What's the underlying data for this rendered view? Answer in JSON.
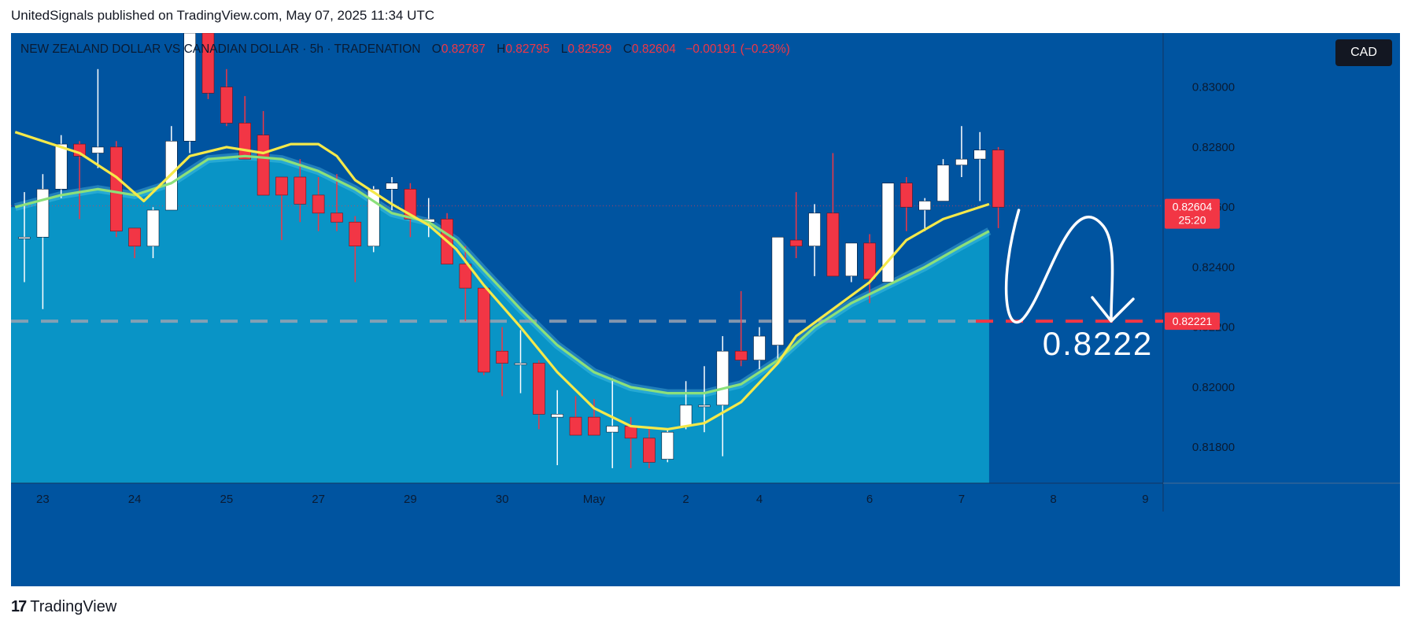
{
  "header": {
    "text": "UnitedSignals published on TradingView.com, May 07, 2025 11:34 UTC"
  },
  "info": {
    "symbol": "NEW ZEALAND DOLLAR VS CANADIAN DOLLAR · 5h · TRADENATION",
    "o_label": "O",
    "o_value": "0.82787",
    "h_label": "H",
    "h_value": "0.82795",
    "l_label": "L",
    "l_value": "0.82529",
    "c_label": "C",
    "c_value": "0.82604",
    "change": "−0.00191 (−0.23%)"
  },
  "currency": "CAD",
  "footer": {
    "brand": "TradingView",
    "logo_text": "17"
  },
  "colors": {
    "background": "#0054a0",
    "up": "#ffffff",
    "down": "#f23645",
    "ma_fast": "#f5e94a",
    "ma_slow": "#8ce07a",
    "area": "#0aa0cc",
    "target_line": "#f23645"
  },
  "chart_data": {
    "type": "candlestick",
    "ylim": [
      0.8168,
      0.8318
    ],
    "y_ticks": [
      0.83,
      0.828,
      0.826,
      0.824,
      0.822,
      0.82,
      0.818
    ],
    "y_tick_labels": [
      "0.83000",
      "0.82800",
      "0.82600",
      "0.82400",
      "0.82200",
      "0.82000",
      "0.81800"
    ],
    "x_tick_labels": [
      {
        "label": "23",
        "i": 1
      },
      {
        "label": "24",
        "i": 6
      },
      {
        "label": "25",
        "i": 11
      },
      {
        "label": "27",
        "i": 16
      },
      {
        "label": "29",
        "i": 21
      },
      {
        "label": "30",
        "i": 26
      },
      {
        "label": "May",
        "i": 31
      },
      {
        "label": "2",
        "i": 36
      },
      {
        "label": "4",
        "i": 40
      },
      {
        "label": "6",
        "i": 46
      },
      {
        "label": "7",
        "i": 51
      },
      {
        "label": "8",
        "i": 56
      },
      {
        "label": "9",
        "i": 61
      }
    ],
    "candles": [
      {
        "o": 0.825,
        "h": 0.8265,
        "l": 0.8235,
        "c": 0.825
      },
      {
        "o": 0.825,
        "h": 0.8271,
        "l": 0.8226,
        "c": 0.8266
      },
      {
        "o": 0.8266,
        "h": 0.8284,
        "l": 0.8263,
        "c": 0.8281
      },
      {
        "o": 0.8281,
        "h": 0.8282,
        "l": 0.8256,
        "c": 0.8277
      },
      {
        "o": 0.8278,
        "h": 0.8306,
        "l": 0.8273,
        "c": 0.828
      },
      {
        "o": 0.828,
        "h": 0.8282,
        "l": 0.825,
        "c": 0.8252
      },
      {
        "o": 0.8253,
        "h": 0.8253,
        "l": 0.8243,
        "c": 0.8247
      },
      {
        "o": 0.8247,
        "h": 0.826,
        "l": 0.8243,
        "c": 0.8259
      },
      {
        "o": 0.8259,
        "h": 0.8287,
        "l": 0.8259,
        "c": 0.8282
      },
      {
        "o": 0.8282,
        "h": 0.8318,
        "l": 0.8278,
        "c": 0.8318
      },
      {
        "o": 0.8318,
        "h": 0.8318,
        "l": 0.8296,
        "c": 0.8298
      },
      {
        "o": 0.83,
        "h": 0.8306,
        "l": 0.8287,
        "c": 0.8288
      },
      {
        "o": 0.8288,
        "h": 0.8297,
        "l": 0.8276,
        "c": 0.8276
      },
      {
        "o": 0.8284,
        "h": 0.8292,
        "l": 0.8264,
        "c": 0.8264
      },
      {
        "o": 0.827,
        "h": 0.827,
        "l": 0.8249,
        "c": 0.8264
      },
      {
        "o": 0.827,
        "h": 0.8276,
        "l": 0.8255,
        "c": 0.8261
      },
      {
        "o": 0.8264,
        "h": 0.827,
        "l": 0.8252,
        "c": 0.8258
      },
      {
        "o": 0.8258,
        "h": 0.8271,
        "l": 0.8252,
        "c": 0.8255
      },
      {
        "o": 0.8255,
        "h": 0.8257,
        "l": 0.8235,
        "c": 0.8247
      },
      {
        "o": 0.8247,
        "h": 0.8267,
        "l": 0.8245,
        "c": 0.8266
      },
      {
        "o": 0.8266,
        "h": 0.827,
        "l": 0.8259,
        "c": 0.8268
      },
      {
        "o": 0.8266,
        "h": 0.8268,
        "l": 0.825,
        "c": 0.8256
      },
      {
        "o": 0.8255,
        "h": 0.8263,
        "l": 0.825,
        "c": 0.8256
      },
      {
        "o": 0.8256,
        "h": 0.8258,
        "l": 0.8241,
        "c": 0.8241
      },
      {
        "o": 0.8241,
        "h": 0.8247,
        "l": 0.8222,
        "c": 0.8233
      },
      {
        "o": 0.8233,
        "h": 0.8233,
        "l": 0.8204,
        "c": 0.8205
      },
      {
        "o": 0.8212,
        "h": 0.822,
        "l": 0.8197,
        "c": 0.8208
      },
      {
        "o": 0.8208,
        "h": 0.8219,
        "l": 0.8198,
        "c": 0.8208
      },
      {
        "o": 0.8208,
        "h": 0.8209,
        "l": 0.8186,
        "c": 0.8191
      },
      {
        "o": 0.819,
        "h": 0.8199,
        "l": 0.8174,
        "c": 0.8191
      },
      {
        "o": 0.819,
        "h": 0.8197,
        "l": 0.8184,
        "c": 0.8184
      },
      {
        "o": 0.819,
        "h": 0.8196,
        "l": 0.8184,
        "c": 0.8184
      },
      {
        "o": 0.8185,
        "h": 0.8203,
        "l": 0.8173,
        "c": 0.8187
      },
      {
        "o": 0.8187,
        "h": 0.819,
        "l": 0.8173,
        "c": 0.8183
      },
      {
        "o": 0.8183,
        "h": 0.8187,
        "l": 0.8173,
        "c": 0.8175
      },
      {
        "o": 0.8176,
        "h": 0.8186,
        "l": 0.8175,
        "c": 0.8185
      },
      {
        "o": 0.8187,
        "h": 0.8202,
        "l": 0.8186,
        "c": 0.8194
      },
      {
        "o": 0.8194,
        "h": 0.8207,
        "l": 0.8185,
        "c": 0.8194
      },
      {
        "o": 0.8194,
        "h": 0.8217,
        "l": 0.8177,
        "c": 0.8212
      },
      {
        "o": 0.8212,
        "h": 0.8232,
        "l": 0.8207,
        "c": 0.8209
      },
      {
        "o": 0.8209,
        "h": 0.822,
        "l": 0.8206,
        "c": 0.8217
      },
      {
        "o": 0.8214,
        "h": 0.825,
        "l": 0.8208,
        "c": 0.825
      },
      {
        "o": 0.8249,
        "h": 0.8265,
        "l": 0.8243,
        "c": 0.8247
      },
      {
        "o": 0.8247,
        "h": 0.8261,
        "l": 0.8237,
        "c": 0.8258
      },
      {
        "o": 0.8258,
        "h": 0.8278,
        "l": 0.8237,
        "c": 0.8237
      },
      {
        "o": 0.8237,
        "h": 0.8248,
        "l": 0.8235,
        "c": 0.8248
      },
      {
        "o": 0.8248,
        "h": 0.8251,
        "l": 0.8228,
        "c": 0.8236
      },
      {
        "o": 0.8235,
        "h": 0.8268,
        "l": 0.8235,
        "c": 0.8268
      },
      {
        "o": 0.8268,
        "h": 0.827,
        "l": 0.8252,
        "c": 0.826
      },
      {
        "o": 0.8259,
        "h": 0.8263,
        "l": 0.8252,
        "c": 0.8262
      },
      {
        "o": 0.8262,
        "h": 0.8276,
        "l": 0.8262,
        "c": 0.8274
      },
      {
        "o": 0.8274,
        "h": 0.8287,
        "l": 0.827,
        "c": 0.8276
      },
      {
        "o": 0.8276,
        "h": 0.8285,
        "l": 0.8262,
        "c": 0.8279
      },
      {
        "o": 0.8279,
        "h": 0.828,
        "l": 0.8253,
        "c": 0.826
      }
    ],
    "ma_fast": [
      {
        "i": -0.5,
        "v": 0.8285
      },
      {
        "i": 1,
        "v": 0.8282
      },
      {
        "i": 3,
        "v": 0.8278
      },
      {
        "i": 5,
        "v": 0.827
      },
      {
        "i": 6.5,
        "v": 0.8262
      },
      {
        "i": 8,
        "v": 0.8271
      },
      {
        "i": 9,
        "v": 0.8277
      },
      {
        "i": 11,
        "v": 0.828
      },
      {
        "i": 13,
        "v": 0.8278
      },
      {
        "i": 14.5,
        "v": 0.8281
      },
      {
        "i": 16,
        "v": 0.8281
      },
      {
        "i": 17,
        "v": 0.8277
      },
      {
        "i": 18,
        "v": 0.8269
      },
      {
        "i": 20,
        "v": 0.8261
      },
      {
        "i": 22,
        "v": 0.8254
      },
      {
        "i": 23.5,
        "v": 0.8246
      },
      {
        "i": 25,
        "v": 0.8234
      },
      {
        "i": 27,
        "v": 0.822
      },
      {
        "i": 29,
        "v": 0.8205
      },
      {
        "i": 31,
        "v": 0.8193
      },
      {
        "i": 33,
        "v": 0.8187
      },
      {
        "i": 35,
        "v": 0.8186
      },
      {
        "i": 37,
        "v": 0.8188
      },
      {
        "i": 39,
        "v": 0.8195
      },
      {
        "i": 41,
        "v": 0.8208
      },
      {
        "i": 42,
        "v": 0.8217
      },
      {
        "i": 44,
        "v": 0.8226
      },
      {
        "i": 46,
        "v": 0.8235
      },
      {
        "i": 48,
        "v": 0.8249
      },
      {
        "i": 50,
        "v": 0.8256
      },
      {
        "i": 51.5,
        "v": 0.8259
      },
      {
        "i": 52.5,
        "v": 0.8261
      }
    ],
    "ma_slow": [
      {
        "i": -0.5,
        "v": 0.826
      },
      {
        "i": 2,
        "v": 0.8264
      },
      {
        "i": 4,
        "v": 0.8266
      },
      {
        "i": 6,
        "v": 0.8264
      },
      {
        "i": 8,
        "v": 0.8268
      },
      {
        "i": 10,
        "v": 0.8276
      },
      {
        "i": 12,
        "v": 0.8277
      },
      {
        "i": 14,
        "v": 0.8276
      },
      {
        "i": 16,
        "v": 0.8272
      },
      {
        "i": 18,
        "v": 0.8266
      },
      {
        "i": 20,
        "v": 0.8258
      },
      {
        "i": 22,
        "v": 0.8255
      },
      {
        "i": 23.5,
        "v": 0.8249
      },
      {
        "i": 25,
        "v": 0.8239
      },
      {
        "i": 27,
        "v": 0.8226
      },
      {
        "i": 29,
        "v": 0.8214
      },
      {
        "i": 31,
        "v": 0.8205
      },
      {
        "i": 33,
        "v": 0.82
      },
      {
        "i": 35,
        "v": 0.8198
      },
      {
        "i": 37,
        "v": 0.8198
      },
      {
        "i": 39,
        "v": 0.8201
      },
      {
        "i": 41,
        "v": 0.8209
      },
      {
        "i": 43,
        "v": 0.822
      },
      {
        "i": 45,
        "v": 0.8228
      },
      {
        "i": 47,
        "v": 0.8234
      },
      {
        "i": 49,
        "v": 0.824
      },
      {
        "i": 51,
        "v": 0.8247
      },
      {
        "i": 52.5,
        "v": 0.8252
      }
    ],
    "last_price": {
      "value": 0.82604,
      "label": "0.82604",
      "countdown": "25:20"
    },
    "target": {
      "value": 0.8222,
      "axis_label": "0.82221",
      "big_label": "0.8222"
    }
  }
}
